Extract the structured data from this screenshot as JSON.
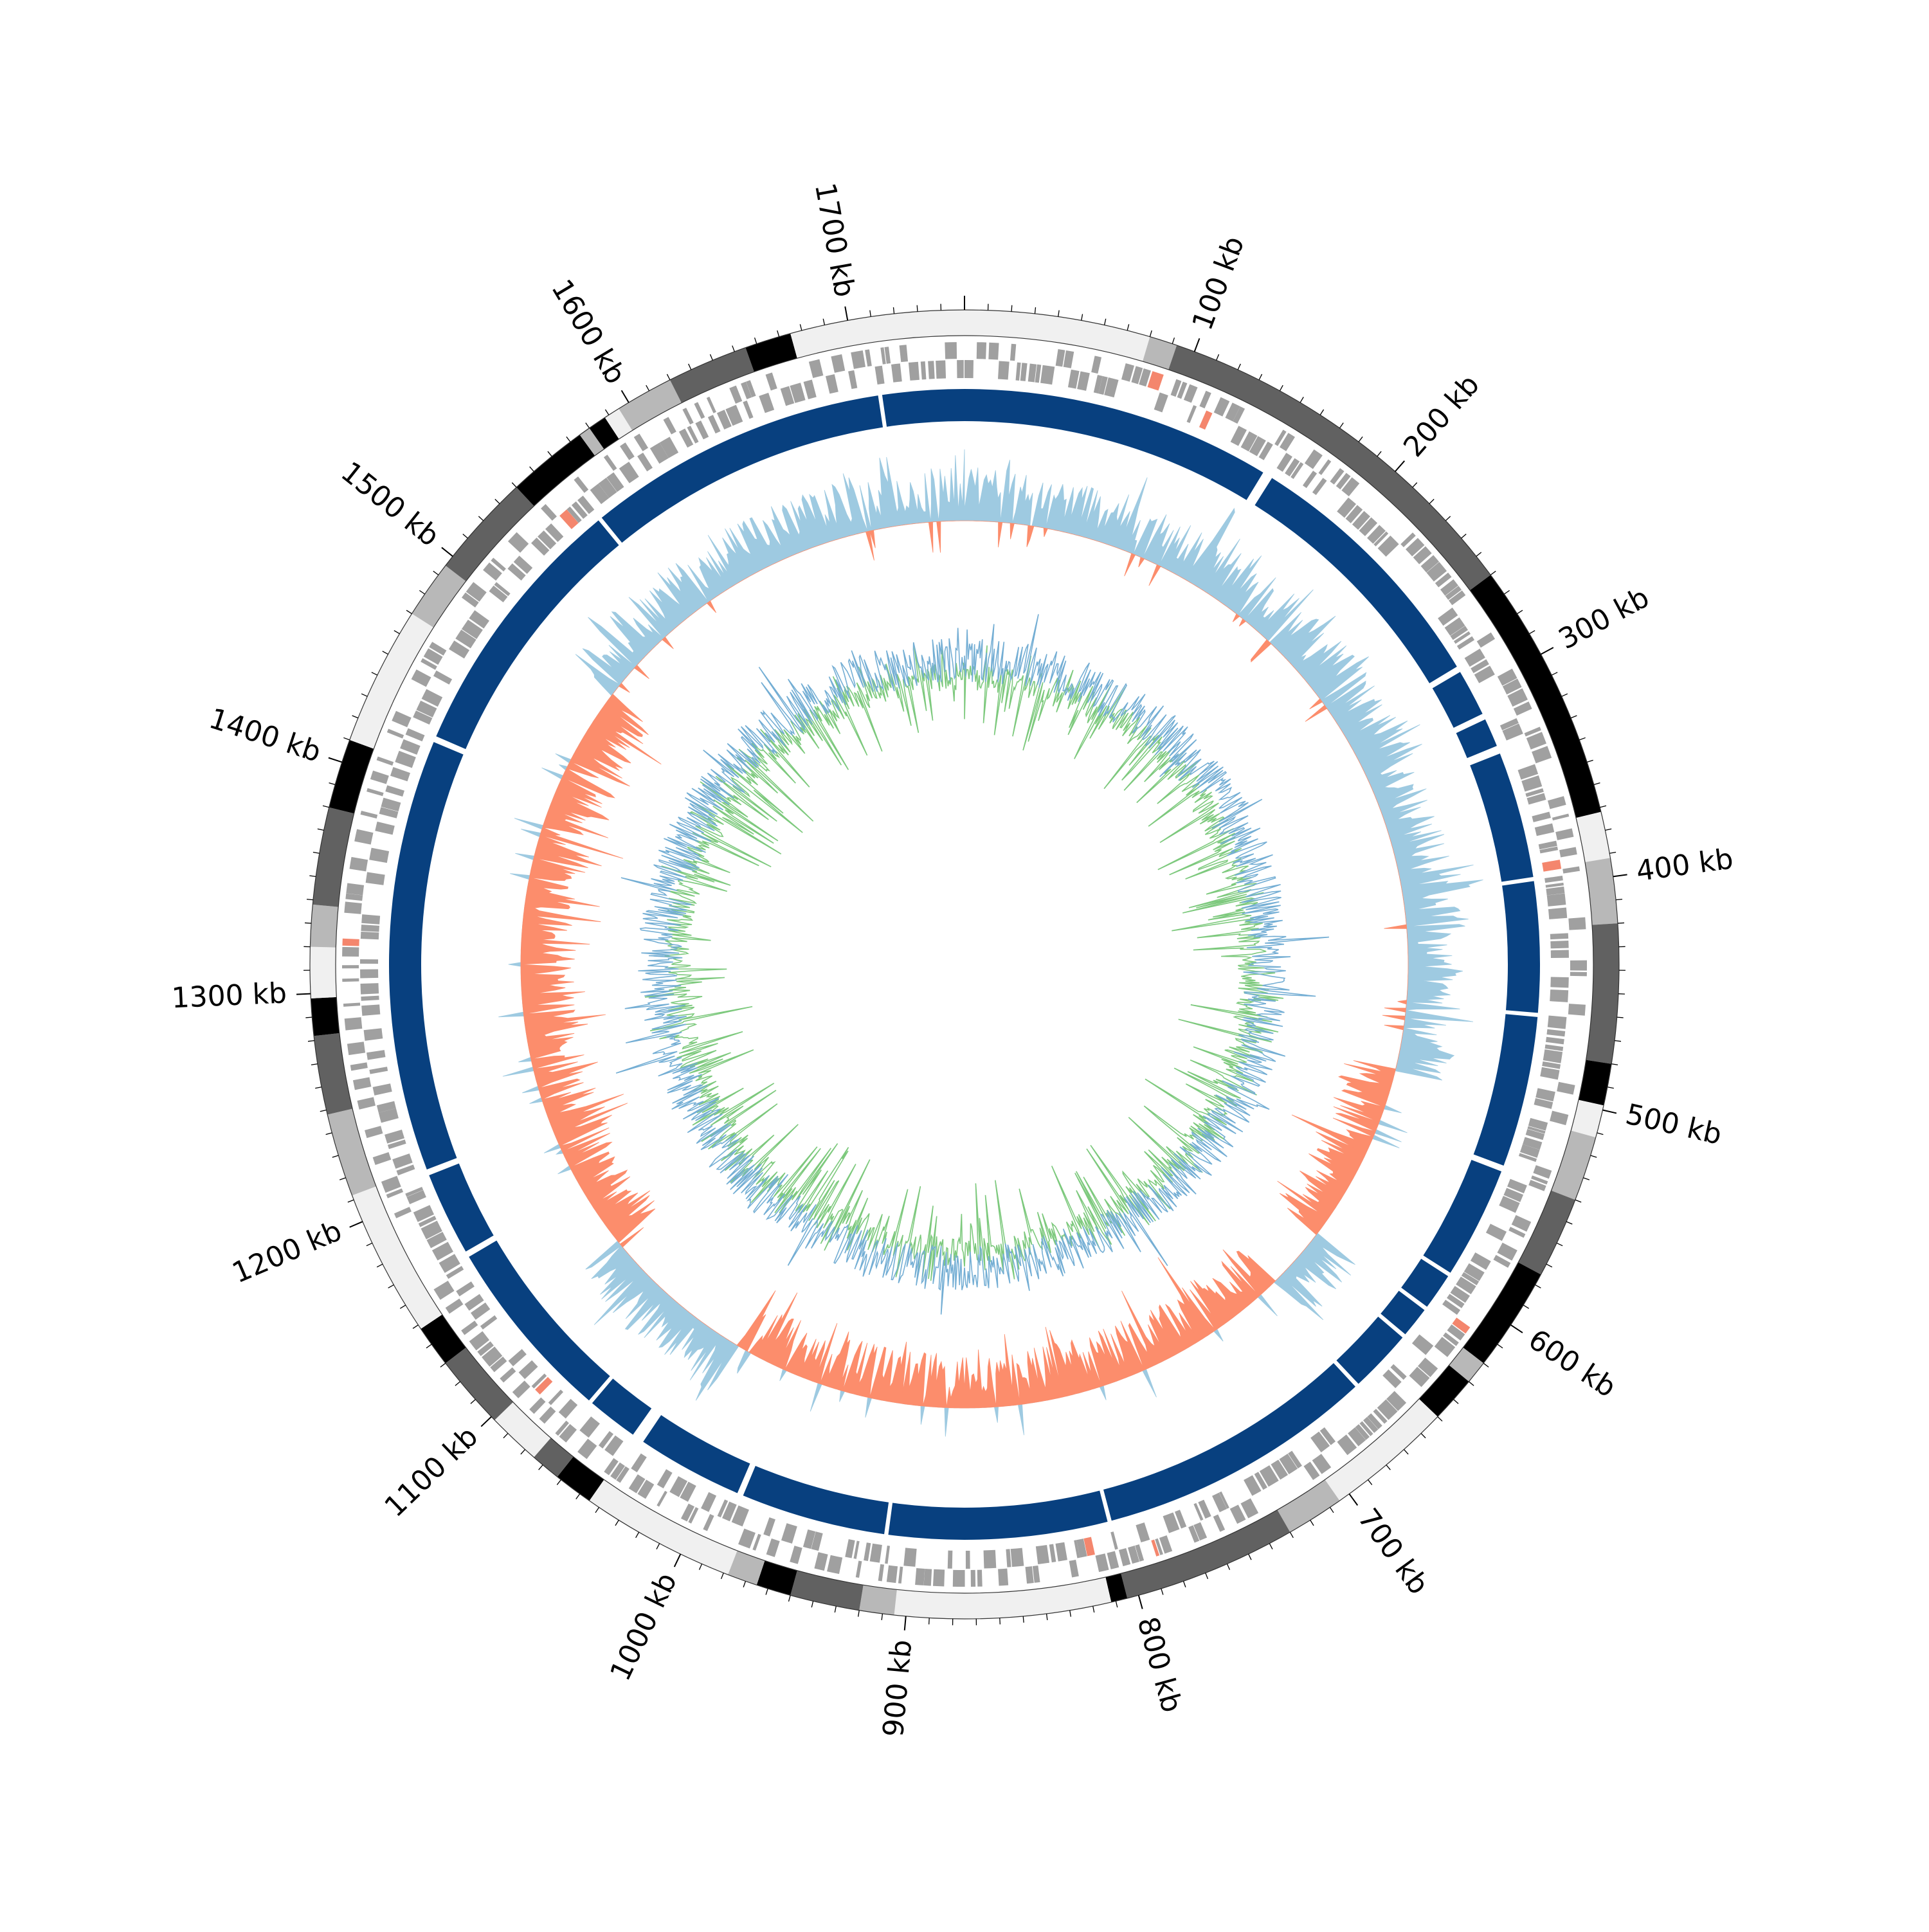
{
  "genome": {
    "length_kb": 1750,
    "tick_labels": [
      {
        "kb": 100,
        "label": "100 kb"
      },
      {
        "kb": 200,
        "label": "200 kb"
      },
      {
        "kb": 300,
        "label": "300 kb"
      },
      {
        "kb": 400,
        "label": "400 kb"
      },
      {
        "kb": 500,
        "label": "500 kb"
      },
      {
        "kb": 600,
        "label": "600 kb"
      },
      {
        "kb": 700,
        "label": "700 kb"
      },
      {
        "kb": 800,
        "label": "800 kb"
      },
      {
        "kb": 900,
        "label": "900 kb"
      },
      {
        "kb": 1000,
        "label": "1000 kb"
      },
      {
        "kb": 1100,
        "label": "1100 kb"
      },
      {
        "kb": 1200,
        "label": "1200 kb"
      },
      {
        "kb": 1300,
        "label": "1300 kb"
      },
      {
        "kb": 1400,
        "label": "1400 kb"
      },
      {
        "kb": 1500,
        "label": "1500 kb"
      },
      {
        "kb": 1600,
        "label": "1600 kb"
      },
      {
        "kb": 1700,
        "label": "1700 kb"
      }
    ]
  },
  "colors": {
    "band_black": "#000000",
    "band_dark": "#616161",
    "band_mid": "#b8b8b8",
    "band_light": "#f0f0f0",
    "gene": "#a0a0a0",
    "gene_highlight": "#f4866d",
    "alignment": "#08407f",
    "gc_skew_positive": "#9ecae1",
    "gc_skew_negative": "#fc8d6c",
    "gc_content": "#74aed4",
    "gc_content_inner": "#7dc97d"
  },
  "bands": [
    {
      "start": 0,
      "end": 80,
      "shade": "light"
    },
    {
      "start": 80,
      "end": 92,
      "shade": "mid"
    },
    {
      "start": 92,
      "end": 260,
      "shade": "dark"
    },
    {
      "start": 260,
      "end": 372,
      "shade": "black"
    },
    {
      "start": 372,
      "end": 392,
      "shade": "light"
    },
    {
      "start": 392,
      "end": 420,
      "shade": "mid"
    },
    {
      "start": 420,
      "end": 480,
      "shade": "dark"
    },
    {
      "start": 480,
      "end": 498,
      "shade": "black"
    },
    {
      "start": 498,
      "end": 512,
      "shade": "light"
    },
    {
      "start": 512,
      "end": 540,
      "shade": "mid"
    },
    {
      "start": 540,
      "end": 575,
      "shade": "dark"
    },
    {
      "start": 575,
      "end": 620,
      "shade": "black"
    },
    {
      "start": 620,
      "end": 630,
      "shade": "mid"
    },
    {
      "start": 630,
      "end": 650,
      "shade": "black"
    },
    {
      "start": 650,
      "end": 705,
      "shade": "light"
    },
    {
      "start": 705,
      "end": 730,
      "shade": "mid"
    },
    {
      "start": 730,
      "end": 805,
      "shade": "dark"
    },
    {
      "start": 805,
      "end": 812,
      "shade": "black"
    },
    {
      "start": 812,
      "end": 905,
      "shade": "light"
    },
    {
      "start": 905,
      "end": 920,
      "shade": "mid"
    },
    {
      "start": 920,
      "end": 950,
      "shade": "dark"
    },
    {
      "start": 950,
      "end": 965,
      "shade": "black"
    },
    {
      "start": 965,
      "end": 978,
      "shade": "mid"
    },
    {
      "start": 978,
      "end": 1045,
      "shade": "light"
    },
    {
      "start": 1045,
      "end": 1062,
      "shade": "black"
    },
    {
      "start": 1062,
      "end": 1075,
      "shade": "dark"
    },
    {
      "start": 1075,
      "end": 1098,
      "shade": "light"
    },
    {
      "start": 1098,
      "end": 1130,
      "shade": "dark"
    },
    {
      "start": 1130,
      "end": 1148,
      "shade": "black"
    },
    {
      "start": 1148,
      "end": 1212,
      "shade": "light"
    },
    {
      "start": 1212,
      "end": 1248,
      "shade": "mid"
    },
    {
      "start": 1248,
      "end": 1282,
      "shade": "dark"
    },
    {
      "start": 1282,
      "end": 1298,
      "shade": "black"
    },
    {
      "start": 1298,
      "end": 1320,
      "shade": "light"
    },
    {
      "start": 1320,
      "end": 1338,
      "shade": "mid"
    },
    {
      "start": 1338,
      "end": 1380,
      "shade": "dark"
    },
    {
      "start": 1380,
      "end": 1410,
      "shade": "black"
    },
    {
      "start": 1410,
      "end": 1470,
      "shade": "light"
    },
    {
      "start": 1470,
      "end": 1495,
      "shade": "mid"
    },
    {
      "start": 1495,
      "end": 1540,
      "shade": "dark"
    },
    {
      "start": 1540,
      "end": 1575,
      "shade": "black"
    },
    {
      "start": 1575,
      "end": 1580,
      "shade": "mid"
    },
    {
      "start": 1580,
      "end": 1588,
      "shade": "black"
    },
    {
      "start": 1588,
      "end": 1595,
      "shade": "light"
    },
    {
      "start": 1595,
      "end": 1620,
      "shade": "mid"
    },
    {
      "start": 1620,
      "end": 1655,
      "shade": "dark"
    },
    {
      "start": 1655,
      "end": 1675,
      "shade": "black"
    },
    {
      "start": 1675,
      "end": 1750,
      "shade": "light"
    }
  ],
  "alignment_blocks": [
    {
      "start": 0,
      "end": 152
    },
    {
      "start": 157,
      "end": 286
    },
    {
      "start": 289,
      "end": 312
    },
    {
      "start": 315,
      "end": 329
    },
    {
      "start": 333,
      "end": 395
    },
    {
      "start": 397,
      "end": 461
    },
    {
      "start": 463,
      "end": 537
    },
    {
      "start": 540,
      "end": 595
    },
    {
      "start": 597,
      "end": 615
    },
    {
      "start": 617,
      "end": 632
    },
    {
      "start": 634,
      "end": 665
    },
    {
      "start": 667,
      "end": 803
    },
    {
      "start": 805,
      "end": 912
    },
    {
      "start": 914,
      "end": 985
    },
    {
      "start": 988,
      "end": 1040
    },
    {
      "start": 1046,
      "end": 1071
    },
    {
      "start": 1073,
      "end": 1164
    },
    {
      "start": 1167,
      "end": 1208
    },
    {
      "start": 1211,
      "end": 1423
    },
    {
      "start": 1426,
      "end": 1558
    },
    {
      "start": 1560,
      "end": 1708
    },
    {
      "start": 1710,
      "end": 1750
    }
  ]
}
